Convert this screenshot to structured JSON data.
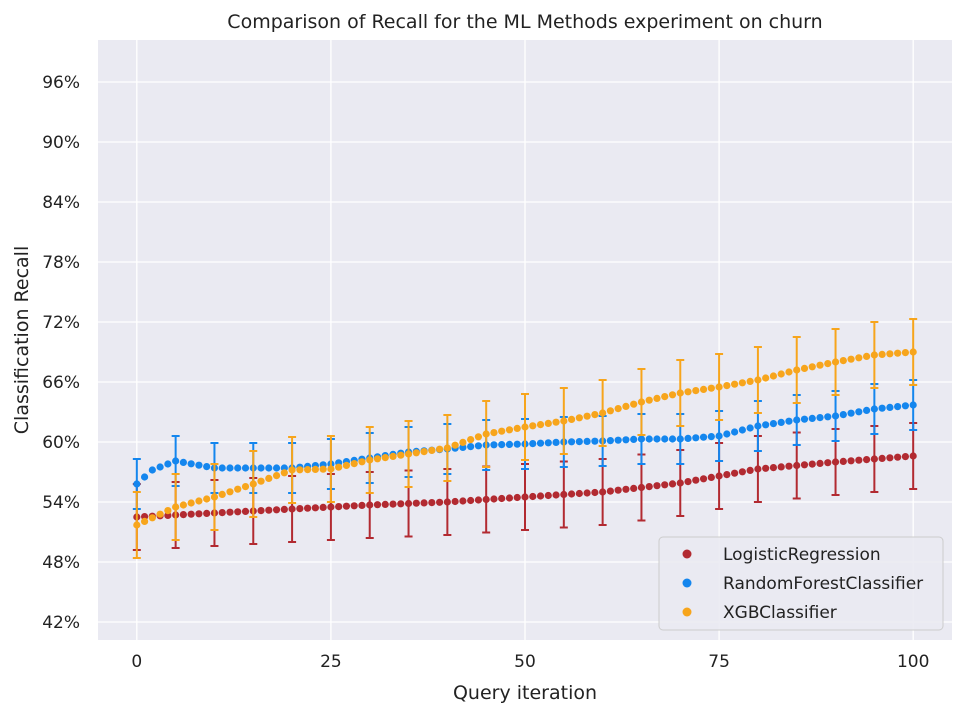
{
  "chart_data": {
    "type": "scatter",
    "title": "Comparison of Recall for the ML Methods experiment on churn",
    "xlabel": "Query iteration",
    "ylabel": "Classification Recall",
    "xlim": [
      -5,
      105
    ],
    "ylim": [
      40.2,
      100.2
    ],
    "x_ticks": [
      0,
      25,
      50,
      75,
      100
    ],
    "x_tick_labels": [
      "0",
      "25",
      "50",
      "75",
      "100"
    ],
    "y_ticks": [
      42,
      48,
      54,
      60,
      66,
      72,
      78,
      84,
      90,
      96
    ],
    "y_tick_labels": [
      "42%",
      "48%",
      "54%",
      "60%",
      "66%",
      "72%",
      "78%",
      "84%",
      "90%",
      "96%"
    ],
    "grid": true,
    "legend_position": "lower-right",
    "series": [
      {
        "name": "LogisticRegression",
        "color": "#b22a31",
        "points": [
          [
            0,
            52.5
          ],
          [
            10,
            52.9
          ],
          [
            20,
            53.3
          ],
          [
            30,
            53.7
          ],
          [
            40,
            54.0
          ],
          [
            50,
            54.5
          ],
          [
            60,
            55.0
          ],
          [
            70,
            55.9
          ],
          [
            80,
            57.3
          ],
          [
            90,
            58.0
          ],
          [
            100,
            58.6
          ]
        ],
        "errorbar_every": 5,
        "error": 3.3
      },
      {
        "name": "RandomForestClassifier",
        "color": "#1486ee",
        "points": [
          [
            0,
            55.8
          ],
          [
            2,
            57.2
          ],
          [
            5,
            58.1
          ],
          [
            10,
            57.4
          ],
          [
            15,
            57.4
          ],
          [
            20,
            57.4
          ],
          [
            25,
            57.8
          ],
          [
            30,
            58.4
          ],
          [
            35,
            59.0
          ],
          [
            40,
            59.3
          ],
          [
            45,
            59.7
          ],
          [
            50,
            59.8
          ],
          [
            55,
            60.0
          ],
          [
            60,
            60.1
          ],
          [
            65,
            60.3
          ],
          [
            70,
            60.3
          ],
          [
            75,
            60.6
          ],
          [
            80,
            61.6
          ],
          [
            85,
            62.2
          ],
          [
            90,
            62.6
          ],
          [
            95,
            63.3
          ],
          [
            100,
            63.7
          ]
        ],
        "errorbar_every": 5,
        "error": 2.5
      },
      {
        "name": "XGBClassifier",
        "color": "#f7a51c",
        "points": [
          [
            0,
            51.7
          ],
          [
            5,
            53.5
          ],
          [
            10,
            54.5
          ],
          [
            15,
            55.8
          ],
          [
            20,
            57.2
          ],
          [
            25,
            57.3
          ],
          [
            30,
            58.2
          ],
          [
            35,
            58.8
          ],
          [
            40,
            59.4
          ],
          [
            45,
            60.8
          ],
          [
            50,
            61.5
          ],
          [
            55,
            62.1
          ],
          [
            60,
            62.9
          ],
          [
            65,
            64.0
          ],
          [
            70,
            64.9
          ],
          [
            75,
            65.5
          ],
          [
            80,
            66.2
          ],
          [
            85,
            67.2
          ],
          [
            90,
            68.0
          ],
          [
            95,
            68.7
          ],
          [
            100,
            69.0
          ]
        ],
        "errorbar_every": 5,
        "error": 3.3
      }
    ]
  }
}
